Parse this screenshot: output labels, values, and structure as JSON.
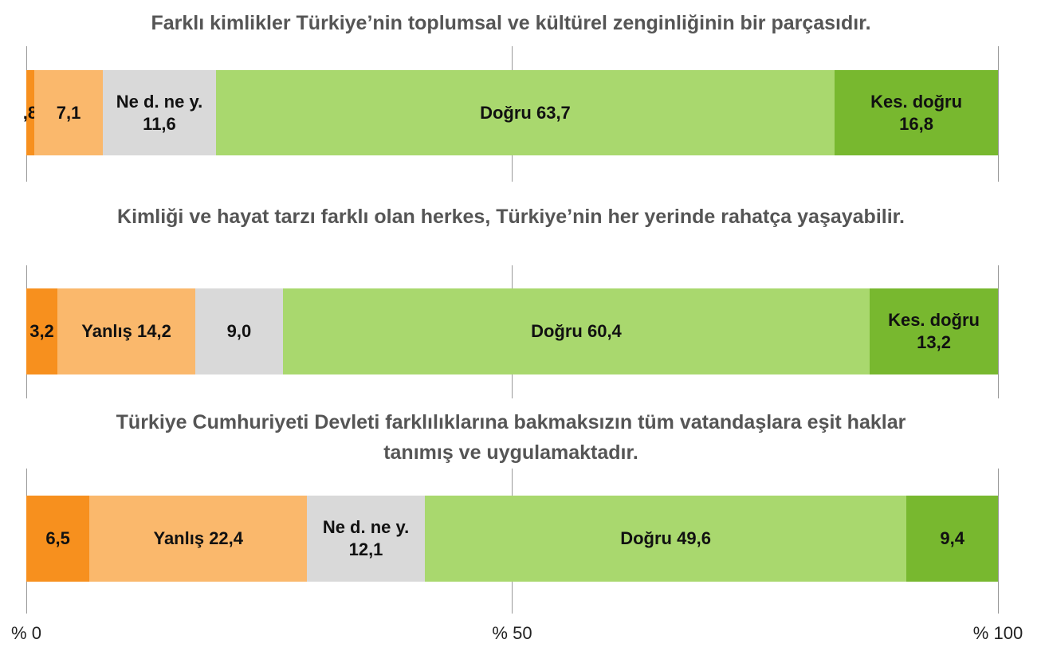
{
  "chart_data": {
    "type": "stacked-bar",
    "categories": [
      "Farklı kimlikler Türkiye’nin toplumsal ve kültürel zenginliğinin bir parçasıdır.",
      "Kimliği ve hayat tarzı farklı olan herkes, Türkiye’nin her yerinde rahatça yaşayabilir.",
      "Türkiye Cumhuriyeti Devleti farklılıklarına bakmaksızın tüm vatandaşlara eşit haklar tanımış ve uygulamaktadır."
    ],
    "series": [
      {
        "color": "#f7901e",
        "values": [
          0.8,
          3.2,
          6.5
        ],
        "value_labels": [
          ",8",
          "3,2",
          "6,5"
        ]
      },
      {
        "color": "#fab86c",
        "values": [
          7.1,
          14.2,
          22.4
        ],
        "value_labels": [
          "7,1",
          "Yanlış 14,2",
          "Yanlış 22,4"
        ]
      },
      {
        "color": "#d9d9d9",
        "values": [
          11.6,
          9.0,
          12.1
        ],
        "value_labels": [
          "Ne d. ne y.\n11,6",
          "9,0",
          "Ne d. ne y.\n12,1"
        ]
      },
      {
        "color": "#a9d86e",
        "values": [
          63.7,
          60.4,
          49.6
        ],
        "value_labels": [
          "Doğru 63,7",
          "Doğru 60,4",
          "Doğru 49,6"
        ]
      },
      {
        "color": "#78b82f",
        "values": [
          16.8,
          13.2,
          9.4
        ],
        "value_labels": [
          "Kes. doğru\n16,8",
          "Kes. doğru\n13,2",
          "9,4"
        ]
      }
    ],
    "xlim": [
      0,
      100
    ],
    "xticks": [
      {
        "value": 0,
        "label": "% 0"
      },
      {
        "value": 50,
        "label": "% 50"
      },
      {
        "value": 100,
        "label": "% 100"
      }
    ],
    "grid": true
  }
}
